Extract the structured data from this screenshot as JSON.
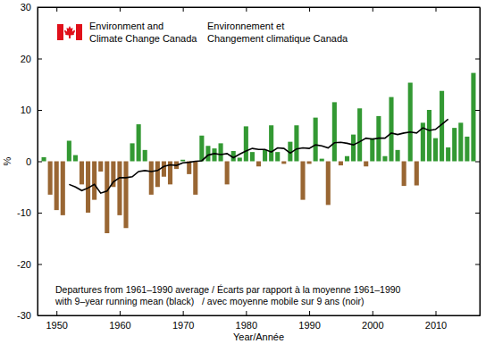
{
  "chart_data": {
    "type": "bar",
    "annotations": [
      "Environment and",
      "Climate Change Canada",
      "Environnement et",
      "Changement climatique Canada",
      "Departures from 1961–1990 average / Écarts par rapport à la moyenne 1961–1990",
      "with 9–year running mean (black)   / avec moyenne mobile sur 9 ans (noir)"
    ],
    "xlabel": "Year/Année",
    "ylabel": "%",
    "xlim": [
      1947,
      2017
    ],
    "xticks": [
      1950,
      1960,
      1970,
      1980,
      1990,
      2000,
      2010
    ],
    "ylim": [
      -30,
      30
    ],
    "yticks": [
      -30,
      -20,
      -10,
      0,
      10,
      20,
      30
    ],
    "series": [
      {
        "type": "bar",
        "x": [
          1948,
          1949,
          1950,
          1951,
          1952,
          1953,
          1954,
          1955,
          1956,
          1957,
          1958,
          1959,
          1960,
          1961,
          1962,
          1963,
          1964,
          1965,
          1966,
          1967,
          1968,
          1969,
          1970,
          1971,
          1972,
          1973,
          1974,
          1975,
          1976,
          1977,
          1978,
          1979,
          1980,
          1981,
          1982,
          1983,
          1984,
          1985,
          1986,
          1987,
          1988,
          1989,
          1990,
          1991,
          1992,
          1993,
          1994,
          1995,
          1996,
          1997,
          1998,
          1999,
          2000,
          2001,
          2002,
          2003,
          2004,
          2005,
          2006,
          2007,
          2008,
          2009,
          2010,
          2011,
          2012,
          2013,
          2014,
          2015,
          2016
        ],
        "values": [
          0.8,
          -6.5,
          -9.5,
          -10.5,
          4,
          1.2,
          -4.5,
          -10,
          -7.5,
          -2,
          -14,
          -5,
          -10.5,
          -13,
          3.5,
          7.2,
          2.2,
          -6.5,
          -5,
          -3,
          -4.5,
          -1.5,
          0.3,
          -2.5,
          -6.5,
          5,
          3,
          2.5,
          3.5,
          -4.5,
          2,
          0.7,
          6.8,
          1.8,
          -1,
          2.2,
          7,
          1.8,
          -0.5,
          3.8,
          7,
          -7.5,
          -0.5,
          8.5,
          0.5,
          -8.5,
          11.5,
          -0.8,
          1,
          5.2,
          10.3,
          -1,
          4.5,
          8.8,
          1,
          12.5,
          2.2,
          -4.8,
          15.3,
          -4.7,
          7.5,
          10,
          4.5,
          13.7,
          2.7,
          6.5,
          7.5,
          4.8,
          17.2
        ],
        "colors": [
          "#339933",
          "#996633",
          "#996633",
          "#996633",
          "#339933",
          "#339933",
          "#996633",
          "#996633",
          "#996633",
          "#996633",
          "#996633",
          "#996633",
          "#996633",
          "#996633",
          "#339933",
          "#339933",
          "#339933",
          "#996633",
          "#996633",
          "#996633",
          "#996633",
          "#996633",
          "#339933",
          "#996633",
          "#996633",
          "#339933",
          "#339933",
          "#339933",
          "#339933",
          "#996633",
          "#339933",
          "#339933",
          "#339933",
          "#339933",
          "#996633",
          "#339933",
          "#339933",
          "#339933",
          "#996633",
          "#339933",
          "#339933",
          "#996633",
          "#996633",
          "#339933",
          "#339933",
          "#996633",
          "#339933",
          "#996633",
          "#339933",
          "#339933",
          "#339933",
          "#996633",
          "#339933",
          "#339933",
          "#339933",
          "#339933",
          "#339933",
          "#996633",
          "#339933",
          "#996633",
          "#339933",
          "#339933",
          "#339933",
          "#339933",
          "#339933",
          "#339933",
          "#339933",
          "#339933",
          "#339933"
        ]
      },
      {
        "type": "line",
        "color": "#000000",
        "x": [
          1952,
          1953,
          1954,
          1955,
          1956,
          1957,
          1958,
          1959,
          1960,
          1961,
          1962,
          1963,
          1964,
          1965,
          1966,
          1967,
          1968,
          1969,
          1970,
          1971,
          1972,
          1973,
          1974,
          1975,
          1976,
          1977,
          1978,
          1979,
          1980,
          1981,
          1982,
          1983,
          1984,
          1985,
          1986,
          1987,
          1988,
          1989,
          1990,
          1991,
          1992,
          1993,
          1994,
          1995,
          1996,
          1997,
          1998,
          1999,
          2000,
          2001,
          2002,
          2003,
          2004,
          2005,
          2006,
          2007,
          2008,
          2009,
          2010,
          2011,
          2012
        ],
        "values": [
          -4.5,
          -5,
          -5.7,
          -5.2,
          -4.5,
          -6.2,
          -5.8,
          -4,
          -3.2,
          -3.2,
          -3,
          -2,
          -1.8,
          -2,
          -1.8,
          -1,
          -0.7,
          -0.8,
          -0.3,
          -0.2,
          0,
          0.1,
          1.2,
          1.5,
          1.3,
          1.5,
          0.7,
          1.4,
          2,
          2.5,
          2.3,
          2.3,
          1.8,
          2.6,
          2.5,
          1.6,
          2.4,
          2.6,
          2.5,
          3.2,
          3,
          2.6,
          3.6,
          3.7,
          3.5,
          3.2,
          3.8,
          4.5,
          4.3,
          4.5,
          4.5,
          5.5,
          5.2,
          5.5,
          5.7,
          5.5,
          6.5,
          6,
          6.2,
          7.2,
          8.2
        ]
      }
    ]
  }
}
